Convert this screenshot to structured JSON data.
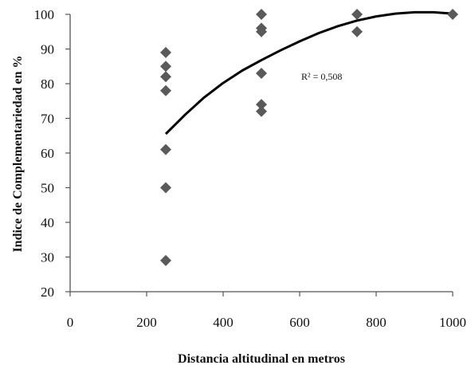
{
  "chart_data": {
    "type": "scatter",
    "title": "",
    "xlabel": "Distancia altitudinal en metros",
    "ylabel": "Indice de Complementariedad en %",
    "xlim": [
      0,
      1000
    ],
    "ylim": [
      20,
      100
    ],
    "xticks": [
      0,
      200,
      400,
      600,
      800,
      1000
    ],
    "yticks": [
      20,
      30,
      40,
      50,
      60,
      70,
      80,
      90,
      100
    ],
    "grid": false,
    "points": [
      {
        "x": 250,
        "y": 89
      },
      {
        "x": 250,
        "y": 85
      },
      {
        "x": 250,
        "y": 82
      },
      {
        "x": 250,
        "y": 78
      },
      {
        "x": 250,
        "y": 61
      },
      {
        "x": 250,
        "y": 50
      },
      {
        "x": 250,
        "y": 29
      },
      {
        "x": 500,
        "y": 100
      },
      {
        "x": 500,
        "y": 96
      },
      {
        "x": 500,
        "y": 95
      },
      {
        "x": 500,
        "y": 83
      },
      {
        "x": 500,
        "y": 74
      },
      {
        "x": 500,
        "y": 72
      },
      {
        "x": 750,
        "y": 100
      },
      {
        "x": 750,
        "y": 95
      },
      {
        "x": 1000,
        "y": 100
      }
    ],
    "marker_color": "#5a5a5a",
    "trendline": {
      "type": "polynomial",
      "color": "#000000",
      "x": [
        250,
        300,
        350,
        400,
        450,
        500,
        550,
        600,
        650,
        700,
        750,
        800,
        850,
        900,
        950,
        1000
      ],
      "y": [
        65.5,
        71,
        76,
        80.2,
        83.8,
        86.8,
        89.6,
        92.2,
        94.6,
        96.6,
        98.2,
        99.4,
        100.2,
        100.6,
        100.6,
        100.2
      ]
    },
    "annotation": "R² = 0,508"
  }
}
